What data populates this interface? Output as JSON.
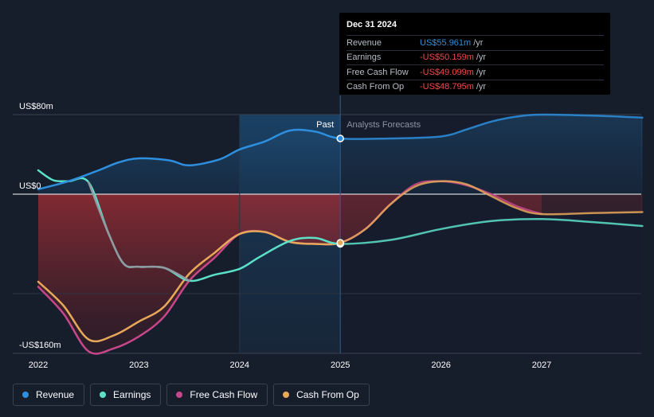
{
  "chart_data": {
    "type": "line",
    "title": "",
    "xlabel": "",
    "ylabel": "",
    "x_ticks": [
      "2022",
      "2023",
      "2024",
      "2025",
      "2026",
      "2027"
    ],
    "y_ticks": [
      {
        "value": 80,
        "label": "US$80m"
      },
      {
        "value": 0,
        "label": "US$0"
      },
      {
        "value": -160,
        "label": "-US$160m"
      }
    ],
    "ylim": [
      -160,
      80
    ],
    "xlim": [
      2022,
      2028
    ],
    "divider_x": 2025,
    "highlight_start_x": 2024,
    "past_label": "Past",
    "forecast_label": "Analysts Forecasts",
    "series": [
      {
        "name": "Revenue",
        "key": "revenue",
        "color": "#2d8fde",
        "points": [
          [
            2022.0,
            5
          ],
          [
            2022.3,
            13
          ],
          [
            2022.6,
            24
          ],
          [
            2022.8,
            32
          ],
          [
            2023.0,
            36
          ],
          [
            2023.3,
            34
          ],
          [
            2023.5,
            29
          ],
          [
            2023.8,
            35
          ],
          [
            2024.0,
            45
          ],
          [
            2024.25,
            53
          ],
          [
            2024.5,
            64
          ],
          [
            2024.75,
            63
          ],
          [
            2025.0,
            56
          ],
          [
            2025.5,
            56
          ],
          [
            2026.0,
            58
          ],
          [
            2026.25,
            65
          ],
          [
            2026.5,
            73
          ],
          [
            2026.75,
            78
          ],
          [
            2027.0,
            80
          ],
          [
            2027.5,
            79
          ],
          [
            2028.0,
            77
          ]
        ]
      },
      {
        "name": "Earnings",
        "key": "earnings",
        "color": "#5ce1c8",
        "points": [
          [
            2022.0,
            24
          ],
          [
            2022.15,
            14
          ],
          [
            2022.3,
            13
          ],
          [
            2022.5,
            12
          ],
          [
            2022.7,
            -40
          ],
          [
            2022.85,
            -70
          ],
          [
            2023.0,
            -73
          ],
          [
            2023.25,
            -74
          ],
          [
            2023.5,
            -87
          ],
          [
            2023.75,
            -81
          ],
          [
            2024.0,
            -75
          ],
          [
            2024.2,
            -63
          ],
          [
            2024.5,
            -47
          ],
          [
            2024.75,
            -44
          ],
          [
            2025.0,
            -50
          ],
          [
            2025.5,
            -46
          ],
          [
            2026.0,
            -35
          ],
          [
            2026.5,
            -27
          ],
          [
            2027.0,
            -25
          ],
          [
            2027.5,
            -28
          ],
          [
            2028.0,
            -32
          ]
        ]
      },
      {
        "name": "Free Cash Flow",
        "key": "fcf",
        "color": "#c8478a",
        "points": [
          [
            2022.0,
            -93
          ],
          [
            2022.25,
            -120
          ],
          [
            2022.5,
            -158
          ],
          [
            2022.75,
            -155
          ],
          [
            2023.0,
            -143
          ],
          [
            2023.25,
            -123
          ],
          [
            2023.5,
            -87
          ],
          [
            2023.75,
            -64
          ],
          [
            2024.0,
            -40
          ],
          [
            2024.25,
            -38
          ],
          [
            2024.5,
            -48
          ],
          [
            2024.75,
            -50
          ],
          [
            2025.0,
            -49
          ],
          [
            2025.25,
            -35
          ],
          [
            2025.5,
            -10
          ],
          [
            2025.75,
            10
          ],
          [
            2026.0,
            13
          ],
          [
            2026.25,
            9
          ],
          [
            2026.5,
            0
          ],
          [
            2026.75,
            -12
          ],
          [
            2027.0,
            -20
          ]
        ]
      },
      {
        "name": "Cash From Op",
        "key": "cfo",
        "color": "#e8a85a",
        "points": [
          [
            2022.0,
            -88
          ],
          [
            2022.25,
            -112
          ],
          [
            2022.5,
            -146
          ],
          [
            2022.75,
            -142
          ],
          [
            2023.0,
            -128
          ],
          [
            2023.25,
            -113
          ],
          [
            2023.5,
            -80
          ],
          [
            2023.75,
            -59
          ],
          [
            2024.0,
            -40
          ],
          [
            2024.25,
            -38
          ],
          [
            2024.5,
            -48
          ],
          [
            2024.75,
            -50
          ],
          [
            2025.0,
            -48.8
          ],
          [
            2025.25,
            -35
          ],
          [
            2025.5,
            -10
          ],
          [
            2025.75,
            8
          ],
          [
            2026.0,
            13
          ],
          [
            2026.25,
            10
          ],
          [
            2026.5,
            -2
          ],
          [
            2026.75,
            -14
          ],
          [
            2027.0,
            -20
          ],
          [
            2027.5,
            -19
          ],
          [
            2028.0,
            -18
          ]
        ]
      }
    ]
  },
  "tooltip": {
    "date": "Dec 31 2024",
    "rows": [
      {
        "name": "Revenue",
        "value": "US$55.961m",
        "unit": "/yr",
        "color": "#2d8fde"
      },
      {
        "name": "Earnings",
        "value": "-US$50.159m",
        "unit": "/yr",
        "color": "#ef4a4a"
      },
      {
        "name": "Free Cash Flow",
        "value": "-US$49.099m",
        "unit": "/yr",
        "color": "#ef4a4a"
      },
      {
        "name": "Cash From Op",
        "value": "-US$48.795m",
        "unit": "/yr",
        "color": "#ef4a4a"
      }
    ]
  },
  "legend": [
    {
      "label": "Revenue",
      "color": "#2d8fde"
    },
    {
      "label": "Earnings",
      "color": "#5ce1c8"
    },
    {
      "label": "Free Cash Flow",
      "color": "#c8478a"
    },
    {
      "label": "Cash From Op",
      "color": "#e8a85a"
    }
  ]
}
